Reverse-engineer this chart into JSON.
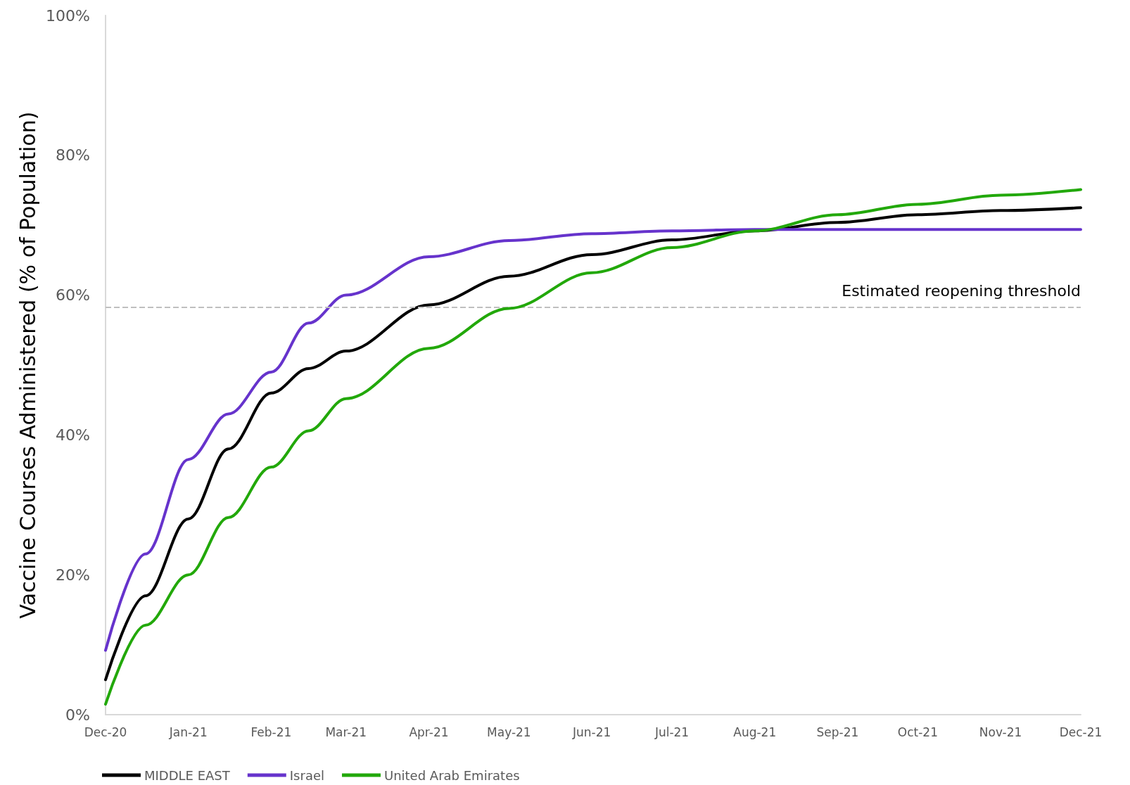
{
  "chart_data": {
    "type": "line",
    "ylabel": "Vaccine Courses Administered (% of Population)",
    "x": [
      "2020-12-01",
      "2020-12-16",
      "2021-01-01",
      "2021-01-16",
      "2021-02-01",
      "2021-02-15",
      "2021-03-01",
      "2021-04-01",
      "2021-05-01",
      "2021-06-01",
      "2021-07-01",
      "2021-08-01",
      "2021-09-01",
      "2021-10-01",
      "2021-11-01",
      "2021-12-01"
    ],
    "series": [
      {
        "name": "MIDDLE EAST",
        "color": "#000000",
        "values": [
          5,
          17,
          28,
          38,
          46,
          49.5,
          52,
          58.6,
          62.7,
          65.8,
          67.9,
          69.2,
          70.4,
          71.5,
          72.1,
          72.5
        ]
      },
      {
        "name": "Israel",
        "color": "#6633cc",
        "values": [
          9.2,
          23,
          36.5,
          43,
          49,
          56,
          60,
          65.5,
          67.8,
          68.8,
          69.2,
          69.4,
          69.4,
          69.4,
          69.4,
          69.4
        ]
      },
      {
        "name": "United Arab Emirates",
        "color": "#22a80a",
        "values": [
          1.5,
          12.8,
          20,
          28.2,
          35.4,
          40.6,
          45.2,
          52.4,
          58.1,
          63.2,
          66.8,
          69.2,
          71.5,
          73,
          74.3,
          75.1
        ]
      }
    ],
    "xlim": [
      "2020-12-01",
      "2021-12-01"
    ],
    "xticks": [
      {
        "value": "2020-12-01",
        "label": "Dec-20"
      },
      {
        "value": "2021-01-01",
        "label": "Jan-21"
      },
      {
        "value": "2021-02-01",
        "label": "Feb-21"
      },
      {
        "value": "2021-03-01",
        "label": "Mar-21"
      },
      {
        "value": "2021-04-01",
        "label": "Apr-21"
      },
      {
        "value": "2021-05-01",
        "label": "May-21"
      },
      {
        "value": "2021-06-01",
        "label": "Jun-21"
      },
      {
        "value": "2021-07-01",
        "label": "Jul-21"
      },
      {
        "value": "2021-08-01",
        "label": "Aug-21"
      },
      {
        "value": "2021-09-01",
        "label": "Sep-21"
      },
      {
        "value": "2021-10-01",
        "label": "Oct-21"
      },
      {
        "value": "2021-11-01",
        "label": "Nov-21"
      },
      {
        "value": "2021-12-01",
        "label": "Dec-21"
      }
    ],
    "ylim": [
      0,
      100
    ],
    "yticks": [
      {
        "value": 0,
        "label": "0%"
      },
      {
        "value": 20,
        "label": "20%"
      },
      {
        "value": 40,
        "label": "40%"
      },
      {
        "value": 60,
        "label": "60%"
      },
      {
        "value": 80,
        "label": "80%"
      },
      {
        "value": 100,
        "label": "100%"
      }
    ],
    "ref_lines": [
      {
        "axis": "y",
        "value": 58.3,
        "label": "Estimated reopening threshold",
        "color": "#bfbfbf",
        "line_style": "dashed"
      }
    ],
    "grid": false,
    "legend": "bottom left",
    "marker": "none",
    "line_style": "solid"
  }
}
